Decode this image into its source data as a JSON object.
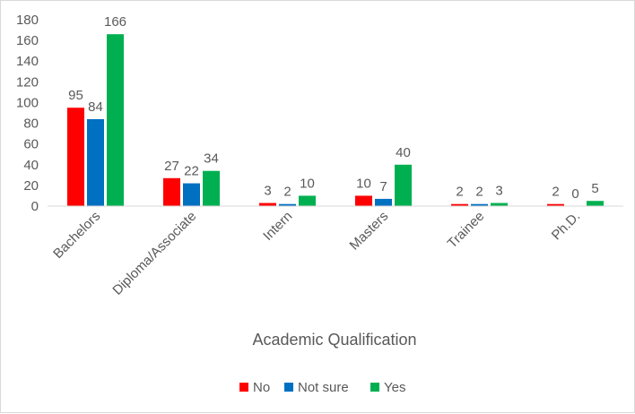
{
  "chart_data": {
    "type": "bar",
    "categories": [
      "Bachelors",
      "Diploma/Associate",
      "Intern",
      "Masters",
      "Trainee",
      "Ph.D."
    ],
    "series": [
      {
        "name": "No",
        "values": [
          95,
          27,
          3,
          10,
          2,
          2
        ],
        "color": "#ff0000"
      },
      {
        "name": "Not sure",
        "values": [
          84,
          22,
          2,
          7,
          2,
          0
        ],
        "color": "#0070c0"
      },
      {
        "name": "Yes",
        "values": [
          166,
          34,
          10,
          40,
          3,
          5
        ],
        "color": "#00b050"
      }
    ],
    "yticks": [
      0,
      20,
      40,
      60,
      80,
      100,
      120,
      140,
      160,
      180
    ],
    "ylim": [
      0,
      180
    ],
    "xlabel": "Academic Qualification",
    "ylabel": "",
    "title": "",
    "legend": "bottom",
    "grid": false
  }
}
